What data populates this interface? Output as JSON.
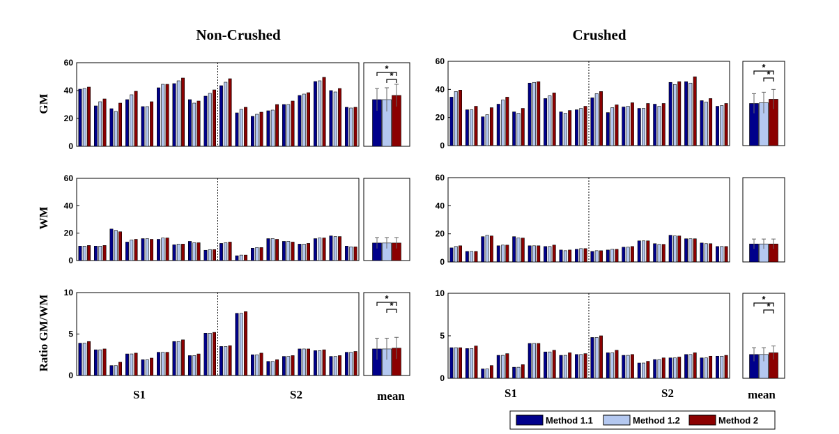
{
  "chart_data": {
    "type": "bar",
    "colors": {
      "Method 1.1": "#00008b",
      "Method 1.2": "#b4c8f0",
      "Method 2": "#8b0000"
    },
    "legend": [
      "Method 1.1",
      "Method 1.2",
      "Method 2"
    ],
    "groups": [
      "S1",
      "S2"
    ],
    "mean_label": "mean",
    "columns": [
      {
        "title": "Non-Crushed",
        "panels": [
          {
            "ylabel": "GM",
            "ylim": [
              0,
              60
            ],
            "yticks": [
              "0",
              "20",
              "40",
              "60"
            ],
            "s1": [
              [
                41,
                41.5,
                42.5
              ],
              [
                29,
                32,
                34
              ],
              [
                27,
                25,
                31
              ],
              [
                33.5,
                37,
                39.5
              ],
              [
                28.5,
                28.5,
                32
              ],
              [
                42,
                44.5,
                44.5
              ],
              [
                45,
                47,
                49
              ],
              [
                33.5,
                31,
                32.5
              ],
              [
                36,
                38,
                40.5
              ]
            ],
            "s2": [
              [
                43.5,
                46,
                48.5
              ],
              [
                24,
                26.5,
                28
              ],
              [
                21.5,
                23,
                24.5
              ],
              [
                25.5,
                26,
                30
              ],
              [
                30,
                30,
                32.5
              ],
              [
                36.5,
                37.5,
                38.5
              ],
              [
                46.5,
                47,
                49.5
              ],
              [
                40,
                39,
                41.5
              ],
              [
                28,
                27.5,
                28
              ]
            ],
            "mean": [
              33.5,
              33.5,
              36.5
            ],
            "err": [
              8,
              8.5,
              8
            ],
            "stars": [
              "*",
              "*"
            ]
          },
          {
            "ylabel": "WM",
            "ylim": [
              0,
              60
            ],
            "yticks": [
              "0",
              "20",
              "40",
              "60"
            ],
            "s1": [
              [
                10.5,
                10.5,
                11
              ],
              [
                10.5,
                10.5,
                11
              ],
              [
                23,
                22,
                21
              ],
              [
                13.5,
                15,
                15.5
              ],
              [
                16,
                16,
                15.5
              ],
              [
                15.5,
                16.5,
                16.5
              ],
              [
                11.5,
                12,
                12
              ],
              [
                14,
                13,
                13
              ],
              [
                7.5,
                8,
                8
              ]
            ],
            "s2": [
              [
                12.5,
                13,
                13.5
              ],
              [
                3.5,
                4,
                4
              ],
              [
                9,
                9.5,
                9.5
              ],
              [
                16,
                16,
                15.5
              ],
              [
                14,
                14,
                13.5
              ],
              [
                12,
                12,
                12.5
              ],
              [
                16,
                16.5,
                16.5
              ],
              [
                18,
                17.5,
                17.5
              ],
              [
                10.5,
                10,
                10
              ]
            ],
            "mean": [
              12.8,
              12.8,
              12.8
            ],
            "err": [
              4,
              4,
              4
            ],
            "stars": []
          },
          {
            "ylabel": "Ratio GM/WM",
            "ylim": [
              0,
              10
            ],
            "yticks": [
              "0",
              "5",
              "10"
            ],
            "s1": [
              [
                3.9,
                3.9,
                4.1
              ],
              [
                3.1,
                3.1,
                3.2
              ],
              [
                1.2,
                1.2,
                1.6
              ],
              [
                2.6,
                2.6,
                2.7
              ],
              [
                1.9,
                1.9,
                2.1
              ],
              [
                2.8,
                2.8,
                2.8
              ],
              [
                4.1,
                4.1,
                4.3
              ],
              [
                2.4,
                2.4,
                2.6
              ],
              [
                5.1,
                5.1,
                5.2
              ]
            ],
            "s2": [
              [
                3.5,
                3.5,
                3.6
              ],
              [
                7.5,
                7.5,
                7.7
              ],
              [
                2.5,
                2.5,
                2.7
              ],
              [
                1.7,
                1.7,
                1.9
              ],
              [
                2.3,
                2.3,
                2.4
              ],
              [
                3.2,
                3.2,
                3.2
              ],
              [
                3,
                3,
                3.1
              ],
              [
                2.3,
                2.3,
                2.4
              ],
              [
                2.8,
                2.8,
                2.9
              ]
            ],
            "mean": [
              3.2,
              3.2,
              3.3
            ],
            "err": [
              1.3,
              1.3,
              1.3
            ],
            "stars": [
              "*",
              "*"
            ]
          }
        ]
      },
      {
        "title": "Crushed",
        "panels": [
          {
            "ylabel": "GM",
            "ylim": [
              0,
              60
            ],
            "yticks": [
              "0",
              "20",
              "40",
              "60"
            ],
            "s1": [
              [
                34.5,
                38.5,
                39.5
              ],
              [
                25.5,
                25.5,
                28
              ],
              [
                20.5,
                22,
                27
              ],
              [
                29.5,
                32.5,
                34.5
              ],
              [
                24,
                23,
                26.5
              ],
              [
                44.5,
                45,
                45.5
              ],
              [
                33.5,
                35.5,
                37.5
              ],
              [
                24,
                23,
                25
              ],
              [
                25.5,
                26.5,
                28
              ]
            ],
            "s2": [
              [
                34,
                37,
                38.5
              ],
              [
                23.5,
                27,
                29
              ],
              [
                27.5,
                28,
                30.5
              ],
              [
                26.5,
                26.5,
                30
              ],
              [
                29.5,
                28,
                30
              ],
              [
                45,
                43.5,
                45.5
              ],
              [
                45.5,
                44.5,
                49
              ],
              [
                32,
                31,
                33.5
              ],
              [
                28,
                28.5,
                30
              ]
            ],
            "mean": [
              30,
              30.5,
              33
            ],
            "err": [
              7,
              7.5,
              7
            ],
            "stars": [
              "*",
              "*"
            ]
          },
          {
            "ylabel": "",
            "ylim": [
              0,
              60
            ],
            "yticks": [
              "0",
              "20",
              "40",
              "60"
            ],
            "s1": [
              [
                10,
                11,
                11.5
              ],
              [
                7.5,
                7.5,
                7.5
              ],
              [
                18,
                19,
                18.5
              ],
              [
                11.5,
                12,
                12
              ],
              [
                18,
                17,
                17
              ],
              [
                11.5,
                11.5,
                11.5
              ],
              [
                11,
                11,
                12
              ],
              [
                8.5,
                8,
                8.5
              ],
              [
                9,
                9.5,
                9.5
              ]
            ],
            "s2": [
              [
                7.5,
                8,
                8
              ],
              [
                8.5,
                9,
                9
              ],
              [
                10.5,
                10.5,
                11
              ],
              [
                15,
                15,
                15
              ],
              [
                13,
                12.5,
                12.5
              ],
              [
                19,
                18.5,
                18.5
              ],
              [
                16.5,
                16.5,
                16.5
              ],
              [
                13.5,
                13,
                13
              ],
              [
                11,
                11,
                11
              ]
            ],
            "mean": [
              12.8,
              12.8,
              12.8
            ],
            "err": [
              3.5,
              3.5,
              3.5
            ],
            "stars": []
          },
          {
            "ylabel": "",
            "ylim": [
              0,
              10
            ],
            "yticks": [
              "0",
              "5",
              "10"
            ],
            "s1": [
              [
                3.6,
                3.6,
                3.6
              ],
              [
                3.5,
                3.5,
                3.8
              ],
              [
                1.1,
                1.1,
                1.5
              ],
              [
                2.7,
                2.7,
                2.9
              ],
              [
                1.3,
                1.3,
                1.6
              ],
              [
                4.1,
                4.1,
                4.1
              ],
              [
                3.1,
                3.1,
                3.3
              ],
              [
                2.7,
                2.7,
                3
              ],
              [
                2.8,
                2.8,
                2.9
              ]
            ],
            "s2": [
              [
                4.8,
                4.8,
                5
              ],
              [
                3,
                3,
                3.3
              ],
              [
                2.7,
                2.7,
                2.8
              ],
              [
                1.8,
                1.8,
                2
              ],
              [
                2.2,
                2.2,
                2.4
              ],
              [
                2.4,
                2.4,
                2.5
              ],
              [
                2.8,
                2.8,
                3
              ],
              [
                2.4,
                2.4,
                2.6
              ],
              [
                2.6,
                2.6,
                2.7
              ]
            ],
            "mean": [
              2.8,
              2.8,
              3
            ],
            "err": [
              0.8,
              0.8,
              0.8
            ],
            "stars": [
              "*",
              "*"
            ]
          }
        ]
      }
    ]
  }
}
